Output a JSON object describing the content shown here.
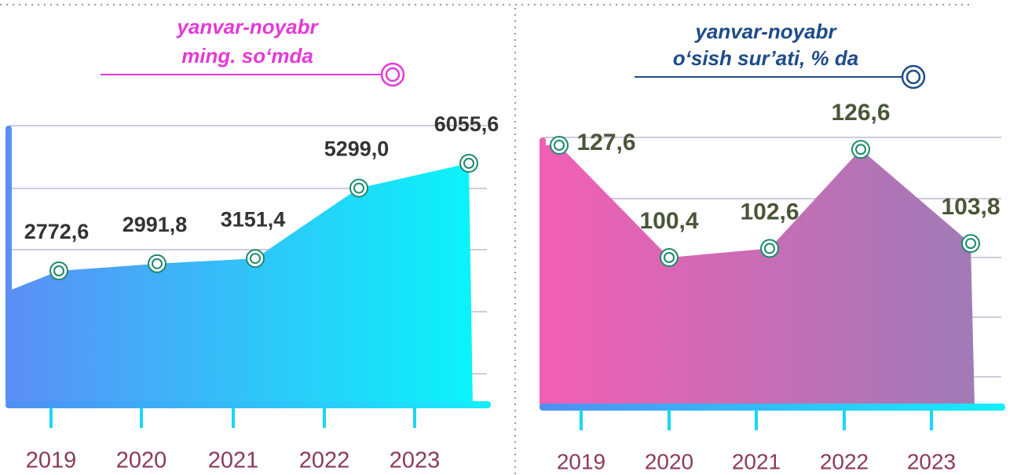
{
  "chart_data": [
    {
      "type": "area",
      "title": "yanvar-noyabr",
      "subtitle": "ming. so‘mda",
      "categories": [
        "2019",
        "2020",
        "2021",
        "2022",
        "2023"
      ],
      "values": [
        2772.6,
        2991.8,
        3151.4,
        5299.0,
        6055.6
      ],
      "value_labels": [
        "2772,6",
        "2991,8",
        "3151,4",
        "5299,0",
        "6055,6"
      ],
      "fill_colors": [
        "#5b8ff6",
        "#0af4fa"
      ],
      "title_color": "#e43ad6",
      "label_color": "#333333"
    },
    {
      "type": "area",
      "title": "yanvar-noyabr",
      "subtitle": "o‘sish sur’ati, % da",
      "categories": [
        "2019",
        "2020",
        "2021",
        "2022",
        "2023"
      ],
      "values": [
        127.6,
        100.4,
        102.6,
        126.6,
        103.8
      ],
      "value_labels": [
        "127,6",
        "100,4",
        "102,6",
        "126,6",
        "103,8"
      ],
      "fill_colors": [
        "#f25fb4",
        "#a07ab6"
      ],
      "title_color": "#1e4b8a",
      "label_color": "#4a5638"
    }
  ]
}
